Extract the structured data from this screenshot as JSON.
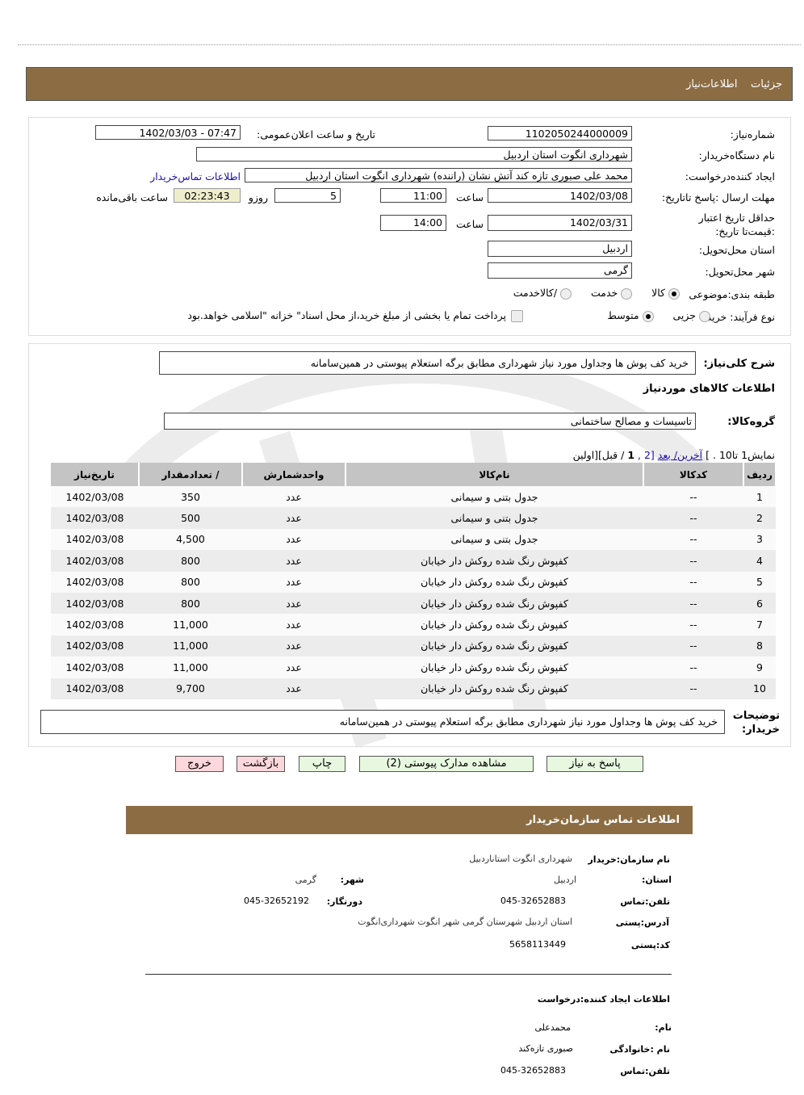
{
  "header": {
    "tab1": "جزئیات",
    "tab2": "اطلاعات‌نیاز"
  },
  "form": {
    "need_number_label": "شماره‌نیاز:",
    "need_number": "1102050244000009",
    "announce_label": "تاریخ و ساعت اعلان‌عمومی:",
    "announce_value": "1402/03/03 - 07:47",
    "buyer_org_label": "نام دستگاه‌خریدار:",
    "buyer_org": "شهرداری انگوت استان اردبیل",
    "creator_label": "ایجاد کننده‌درخواست:",
    "creator": "محمد علی صبوری تازه کند آتش نشان (راننده) شهرداری انگوت استان اردبیل",
    "contact_link": "اطلاعات تماس‌خریدار",
    "deadline_label": "مهلت ارسال :پاسخ تا‌تاریخ:",
    "deadline_date": "1402/03/08",
    "time_label": "ساعت",
    "deadline_time": "11:00",
    "days": "5",
    "days_label": "روزو",
    "remaining": "02:23:43",
    "remaining_label": "ساعت باقی‌مانده",
    "validity_label": "حداقل تاریخ اعتبار :قیمت‌تا تاریخ:",
    "validity_date": "1402/03/31",
    "validity_time": "14:00",
    "province_label": "استان محل‌تحویل:",
    "province": "اردبیل",
    "city_label": "شهر محل‌تحویل:",
    "city": "گرمی",
    "category_label": "طبقه بندی:موضوعی",
    "category_options": [
      "کالا",
      "خدمت",
      "/کالاخدمت"
    ],
    "category_selected": "کالا",
    "process_label": "نوع فرآیند: خرید",
    "process_options": [
      "جزیی",
      "متوسط"
    ],
    "process_selected": "متوسط",
    "payment_note": "پرداخت تمام یا بخشی از مبلغ خرید،از محل اسناد\" خزانه \"اسلامی خواهد.بود"
  },
  "details": {
    "summary_label": "شرح کلی‌نیاز:",
    "summary": "خرید کف پوش ها وجداول مورد نیاز شهرداری مطابق برگه استعلام پیوستی در همین‌سامانه",
    "goods_title": "اطلاعات کالاهای موردنیاز",
    "group_label": "گروه‌کالا:",
    "group": "تاسیسات و مصالح ساختمانی",
    "pagination": {
      "prefix": "نمایش1  تا10 . ]",
      "last_next": "آخرین/ بعد",
      "p2": "[2 ,",
      "p1": "1",
      "rest": " / قبل][اولین"
    },
    "buyer_notes_label": "توضیحات خریدار:",
    "buyer_notes": "خرید کف پوش ها وجداول مورد نیاز شهرداری مطابق برگه استعلام پیوستی در همین‌سامانه"
  },
  "table": {
    "columns": [
      "ردیف",
      "کدکالا",
      "نام‌کالا",
      "واحدشمارش",
      "/ تعدادمقدار",
      "تاریخ‌نیاز"
    ],
    "rows": [
      [
        "1",
        "--",
        "جدول بتنی و سیمانی",
        "عدد",
        "350",
        "1402/03/08"
      ],
      [
        "2",
        "--",
        "جدول بتنی و سیمانی",
        "عدد",
        "500",
        "1402/03/08"
      ],
      [
        "3",
        "--",
        "جدول بتنی و سیمانی",
        "عدد",
        "4,500",
        "1402/03/08"
      ],
      [
        "4",
        "--",
        "کفپوش رنگ شده روکش دار خیابان",
        "عدد",
        "800",
        "1402/03/08"
      ],
      [
        "5",
        "--",
        "کفپوش رنگ شده روکش دار خیابان",
        "عدد",
        "800",
        "1402/03/08"
      ],
      [
        "6",
        "--",
        "کفپوش رنگ شده روکش دار خیابان",
        "عدد",
        "800",
        "1402/03/08"
      ],
      [
        "7",
        "--",
        "کفپوش رنگ شده روکش دار خیابان",
        "عدد",
        "11,000",
        "1402/03/08"
      ],
      [
        "8",
        "--",
        "کفپوش رنگ شده روکش دار خیابان",
        "عدد",
        "11,000",
        "1402/03/08"
      ],
      [
        "9",
        "--",
        "کفپوش رنگ شده روکش دار خیابان",
        "عدد",
        "11,000",
        "1402/03/08"
      ],
      [
        "10",
        "--",
        "کفپوش رنگ شده روکش دار خیابان",
        "عدد",
        "9,700",
        "1402/03/08"
      ]
    ]
  },
  "buttons": {
    "reply": "پاسخ به نیاز",
    "docs": "مشاهده مدارک پیوستی (2)",
    "print": "چاپ",
    "back": "بازگشت",
    "exit": "خروج"
  },
  "contact": {
    "title": "اطلاعات  تماس سازمان‌خریدار",
    "org_label": "نام سازمان:خریدار",
    "org": "شهرداری انگوت استاناردبیل",
    "province_label": "استان:",
    "province": "اردبیل",
    "city_label": "شهر:",
    "city": "گرمی",
    "phone_label": "تلفن:تماس",
    "phone": "045-32652883",
    "fax_label": "دورنگار:",
    "fax": "045-32652192",
    "address_label": "آدرس:پستی",
    "address": "استان اردبیل شهرستان گرمی شهر انگوت شهرداری‌انگوت",
    "postal_label": "کد:پستی",
    "postal": "5658113449",
    "creator_title": "اطلاعات  ایجاد کننده:درخواست",
    "name_label": "نام:",
    "name": "محمدعلی",
    "family_label": "نام :خانوادگی",
    "family": "صبوری تازه‌کند",
    "creator_phone_label": "تلفن:تماس",
    "creator_phone": "045-32652883"
  },
  "colors": {
    "header_bar": "#8c6d43",
    "link": "#1a0dab",
    "timer_bg": "#eeeecc",
    "green_button": "#e8f8e0",
    "pink_button": "#fcd8dc"
  }
}
